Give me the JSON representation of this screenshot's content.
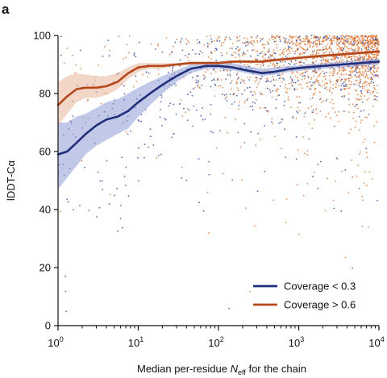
{
  "panel_label": "a",
  "chart_data": {
    "type": "line",
    "title": "",
    "xlabel": "Median per-residue N_eff for the chain",
    "xlabel_parts": {
      "pre": "Median per-residue ",
      "italic": "N",
      "sub": "eff",
      "post": " for the chain"
    },
    "ylabel": "lDDT-Cα",
    "x_scale": "log",
    "xlim": [
      1,
      10000
    ],
    "ylim": [
      0,
      100
    ],
    "x_ticks": [
      1,
      10,
      100,
      1000,
      10000
    ],
    "x_tick_labels": [
      {
        "base": "10",
        "exp": "0"
      },
      {
        "base": "10",
        "exp": "1"
      },
      {
        "base": "10",
        "exp": "2"
      },
      {
        "base": "10",
        "exp": "3"
      },
      {
        "base": "10",
        "exp": "4"
      }
    ],
    "y_ticks": [
      0,
      20,
      40,
      60,
      80,
      100
    ],
    "grid": false,
    "legend_position": "bottom-right",
    "series": [
      {
        "name": "Coverage < 0.3",
        "color": "#1f2f7a",
        "band_color": "#8e9bd6",
        "x": [
          1,
          1.3,
          1.7,
          2.2,
          3,
          4,
          5.5,
          7.5,
          10,
          14,
          20,
          30,
          45,
          70,
          100,
          150,
          220,
          350,
          500,
          800,
          1200,
          2000,
          3500,
          6000,
          10000
        ],
        "y": [
          59,
          60,
          63,
          66,
          69,
          71,
          72,
          74,
          77,
          80,
          83,
          86,
          88.5,
          89.5,
          89.5,
          89,
          88,
          87,
          87.5,
          88.5,
          89,
          89.5,
          90,
          90.5,
          91
        ],
        "lower": [
          47,
          51,
          55,
          59,
          62,
          64,
          66,
          68,
          72,
          76,
          80,
          84,
          87,
          88.5,
          88.5,
          88,
          87,
          86,
          86.5,
          87.5,
          88,
          88.5,
          89,
          89.5,
          90
        ],
        "upper": [
          70,
          70,
          72,
          73,
          75,
          77,
          78,
          80,
          82,
          84,
          86,
          88,
          90,
          91,
          91,
          90.5,
          89.5,
          88.5,
          89,
          89.5,
          90,
          90.5,
          91,
          91.5,
          92
        ]
      },
      {
        "name": "Coverage > 0.6",
        "color": "#b5471b",
        "band_color": "#e8b69d",
        "x": [
          1,
          1.3,
          1.7,
          2.2,
          3,
          4,
          5.5,
          7.5,
          10,
          14,
          20,
          30,
          45,
          70,
          100,
          150,
          220,
          350,
          500,
          800,
          1200,
          2000,
          3500,
          6000,
          10000
        ],
        "y": [
          76,
          79,
          81.5,
          82,
          82,
          82.5,
          84,
          87,
          89,
          89.5,
          89.5,
          90,
          90.5,
          90.5,
          90.5,
          91,
          91,
          91,
          91.5,
          92,
          92.5,
          93,
          93.5,
          94,
          94.5
        ],
        "lower": [
          69,
          73,
          77,
          78.5,
          78.5,
          79.5,
          81.5,
          85,
          87.5,
          88.5,
          88.5,
          89.5,
          90,
          90,
          90,
          90.5,
          90.5,
          90.5,
          91,
          91.5,
          92,
          92.5,
          93,
          93.5,
          94
        ],
        "upper": [
          84,
          86,
          87,
          86.5,
          86,
          86,
          87,
          89,
          90.5,
          90.5,
          90.5,
          90.5,
          91,
          91,
          91,
          91.5,
          91.5,
          91.5,
          92,
          92.5,
          93,
          93.5,
          94,
          94.5,
          95
        ]
      }
    ],
    "scatter_note_colors": {
      "blue": "#3b4fa8",
      "orange": "#e07a3a"
    }
  }
}
